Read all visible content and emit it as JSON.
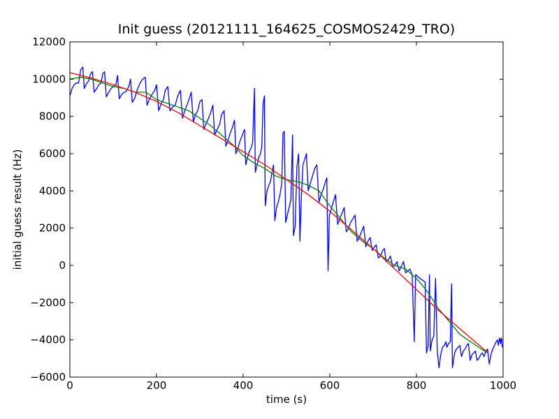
{
  "chart_data": {
    "type": "line",
    "title": "Init guess (20121111_164625_COSMOS2429_TRO)",
    "xlabel": "time (s)",
    "ylabel": "initial guess result (Hz)",
    "xlim": [
      0,
      1000
    ],
    "ylim": [
      -6000,
      12000
    ],
    "xticks": [
      0,
      200,
      400,
      600,
      800,
      1000
    ],
    "yticks": [
      -6000,
      -4000,
      -2000,
      0,
      2000,
      4000,
      6000,
      8000,
      10000,
      12000
    ],
    "x_tick_labels": [
      "0",
      "200",
      "400",
      "600",
      "800",
      "1000"
    ],
    "y_tick_labels": [
      "−6000",
      "−4000",
      "−2000",
      "0",
      "2000",
      "4000",
      "6000",
      "8000",
      "10000",
      "12000"
    ],
    "grid": false,
    "legend": false,
    "series": [
      {
        "color": "#0000ff",
        "points": [
          [
            0,
            9100
          ],
          [
            5,
            9500
          ],
          [
            10,
            9700
          ],
          [
            15,
            9800
          ],
          [
            20,
            9800
          ],
          [
            25,
            10500
          ],
          [
            30,
            10650
          ],
          [
            33,
            9500
          ],
          [
            38,
            9750
          ],
          [
            43,
            9900
          ],
          [
            48,
            10300
          ],
          [
            52,
            10400
          ],
          [
            56,
            9300
          ],
          [
            62,
            9500
          ],
          [
            67,
            9700
          ],
          [
            72,
            9800
          ],
          [
            76,
            10300
          ],
          [
            80,
            10400
          ],
          [
            84,
            9050
          ],
          [
            90,
            9300
          ],
          [
            95,
            9500
          ],
          [
            100,
            9600
          ],
          [
            106,
            9700
          ],
          [
            110,
            10200
          ],
          [
            114,
            8950
          ],
          [
            120,
            9200
          ],
          [
            126,
            9300
          ],
          [
            130,
            9350
          ],
          [
            136,
            9600
          ],
          [
            140,
            10000
          ],
          [
            144,
            8750
          ],
          [
            150,
            9000
          ],
          [
            155,
            9400
          ],
          [
            162,
            9800
          ],
          [
            168,
            10000
          ],
          [
            174,
            10100
          ],
          [
            178,
            8600
          ],
          [
            183,
            8900
          ],
          [
            190,
            9200
          ],
          [
            196,
            9400
          ],
          [
            200,
            9700
          ],
          [
            205,
            8300
          ],
          [
            211,
            8700
          ],
          [
            216,
            8900
          ],
          [
            220,
            9400
          ],
          [
            226,
            9600
          ],
          [
            231,
            8300
          ],
          [
            237,
            8500
          ],
          [
            243,
            8600
          ],
          [
            249,
            9100
          ],
          [
            255,
            9400
          ],
          [
            260,
            7900
          ],
          [
            265,
            8300
          ],
          [
            270,
            8600
          ],
          [
            275,
            8900
          ],
          [
            280,
            9300
          ],
          [
            285,
            7700
          ],
          [
            290,
            8100
          ],
          [
            295,
            8300
          ],
          [
            300,
            8800
          ],
          [
            305,
            8900
          ],
          [
            309,
            7300
          ],
          [
            314,
            7600
          ],
          [
            320,
            7900
          ],
          [
            325,
            8200
          ],
          [
            330,
            8600
          ],
          [
            334,
            7000
          ],
          [
            340,
            7300
          ],
          [
            346,
            7600
          ],
          [
            350,
            8100
          ],
          [
            356,
            8300
          ],
          [
            360,
            6400
          ],
          [
            365,
            6700
          ],
          [
            370,
            7100
          ],
          [
            375,
            7400
          ],
          [
            380,
            7800
          ],
          [
            383,
            6000
          ],
          [
            388,
            6300
          ],
          [
            393,
            6700
          ],
          [
            398,
            7000
          ],
          [
            403,
            7300
          ],
          [
            406,
            5400
          ],
          [
            410,
            5800
          ],
          [
            414,
            6100
          ],
          [
            418,
            6300
          ],
          [
            422,
            6600
          ],
          [
            426,
            9500
          ],
          [
            428,
            5000
          ],
          [
            432,
            5400
          ],
          [
            436,
            5800
          ],
          [
            440,
            6000
          ],
          [
            443,
            6400
          ],
          [
            446,
            8700
          ],
          [
            449,
            9100
          ],
          [
            451,
            3200
          ],
          [
            455,
            4000
          ],
          [
            459,
            4300
          ],
          [
            463,
            4500
          ],
          [
            466,
            4900
          ],
          [
            470,
            5400
          ],
          [
            473,
            2400
          ],
          [
            477,
            3100
          ],
          [
            481,
            3400
          ],
          [
            485,
            3800
          ],
          [
            489,
            4400
          ],
          [
            492,
            7100
          ],
          [
            495,
            7200
          ],
          [
            498,
            2300
          ],
          [
            502,
            2700
          ],
          [
            506,
            3100
          ],
          [
            510,
            3500
          ],
          [
            514,
            7000
          ],
          [
            516,
            1600
          ],
          [
            520,
            2100
          ],
          [
            524,
            5300
          ],
          [
            528,
            6000
          ],
          [
            531,
            1300
          ],
          [
            534,
            3500
          ],
          [
            538,
            5400
          ],
          [
            542,
            5700
          ],
          [
            546,
            6000
          ],
          [
            550,
            4000
          ],
          [
            555,
            4400
          ],
          [
            560,
            4800
          ],
          [
            565,
            5200
          ],
          [
            570,
            5400
          ],
          [
            575,
            3400
          ],
          [
            580,
            3800
          ],
          [
            585,
            4100
          ],
          [
            590,
            4500
          ],
          [
            593,
            4700
          ],
          [
            596,
            -300
          ],
          [
            599,
            2700
          ],
          [
            603,
            3000
          ],
          [
            608,
            3400
          ],
          [
            613,
            3800
          ],
          [
            618,
            2200
          ],
          [
            623,
            2500
          ],
          [
            628,
            2800
          ],
          [
            633,
            3100
          ],
          [
            638,
            1800
          ],
          [
            643,
            2000
          ],
          [
            648,
            2300
          ],
          [
            653,
            2500
          ],
          [
            658,
            2700
          ],
          [
            663,
            1300
          ],
          [
            668,
            1500
          ],
          [
            673,
            1800
          ],
          [
            678,
            2100
          ],
          [
            683,
            1000
          ],
          [
            688,
            1300
          ],
          [
            693,
            1500
          ],
          [
            698,
            800
          ],
          [
            703,
            1000
          ],
          [
            707,
            1100
          ],
          [
            712,
            400
          ],
          [
            717,
            500
          ],
          [
            722,
            800
          ],
          [
            726,
            900
          ],
          [
            730,
            200
          ],
          [
            735,
            300
          ],
          [
            740,
            500
          ],
          [
            745,
            -100
          ],
          [
            750,
            0
          ],
          [
            755,
            200
          ],
          [
            760,
            -300
          ],
          [
            766,
            0
          ],
          [
            770,
            200
          ],
          [
            775,
            -400
          ],
          [
            780,
            -300
          ],
          [
            785,
            -200
          ],
          [
            790,
            -500
          ],
          [
            795,
            -4100
          ],
          [
            798,
            -500
          ],
          [
            803,
            -600
          ],
          [
            808,
            -700
          ],
          [
            814,
            -800
          ],
          [
            820,
            -900
          ],
          [
            823,
            -4700
          ],
          [
            827,
            -4300
          ],
          [
            830,
            -500
          ],
          [
            832,
            -4600
          ],
          [
            836,
            -4000
          ],
          [
            840,
            -3800
          ],
          [
            844,
            -700
          ],
          [
            848,
            -4600
          ],
          [
            852,
            -5500
          ],
          [
            856,
            -4800
          ],
          [
            860,
            -4400
          ],
          [
            864,
            -4300
          ],
          [
            868,
            -4100
          ],
          [
            870,
            -4400
          ],
          [
            874,
            -4200
          ],
          [
            878,
            -4100
          ],
          [
            881,
            -1000
          ],
          [
            883,
            -5500
          ],
          [
            888,
            -4700
          ],
          [
            892,
            -4500
          ],
          [
            896,
            -4400
          ],
          [
            900,
            -4300
          ],
          [
            904,
            -4900
          ],
          [
            908,
            -4600
          ],
          [
            912,
            -4500
          ],
          [
            916,
            -4300
          ],
          [
            920,
            -4200
          ],
          [
            924,
            -5100
          ],
          [
            928,
            -4800
          ],
          [
            932,
            -4700
          ],
          [
            936,
            -4600
          ],
          [
            940,
            -5100
          ],
          [
            944,
            -5000
          ],
          [
            948,
            -4800
          ],
          [
            952,
            -4700
          ],
          [
            956,
            -4900
          ],
          [
            960,
            -4600
          ],
          [
            964,
            -4500
          ],
          [
            968,
            -5300
          ],
          [
            972,
            -4800
          ],
          [
            976,
            -4500
          ],
          [
            980,
            -4300
          ],
          [
            984,
            -4100
          ],
          [
            987,
            -4000
          ],
          [
            989,
            -4300
          ],
          [
            992,
            -3900
          ],
          [
            994,
            -4200
          ],
          [
            996,
            -3900
          ],
          [
            998,
            -4400
          ]
        ]
      },
      {
        "color": "#008000",
        "points": [
          [
            0,
            10000
          ],
          [
            25,
            10100
          ],
          [
            50,
            10000
          ],
          [
            75,
            9800
          ],
          [
            100,
            9600
          ],
          [
            125,
            9500
          ],
          [
            150,
            9300
          ],
          [
            175,
            9300
          ],
          [
            200,
            8900
          ],
          [
            225,
            8700
          ],
          [
            250,
            8500
          ],
          [
            275,
            8300
          ],
          [
            300,
            7900
          ],
          [
            325,
            7500
          ],
          [
            350,
            7000
          ],
          [
            375,
            6500
          ],
          [
            400,
            5900
          ],
          [
            425,
            5500
          ],
          [
            450,
            5200
          ],
          [
            475,
            4800
          ],
          [
            500,
            4600
          ],
          [
            525,
            4500
          ],
          [
            550,
            4300
          ],
          [
            575,
            4000
          ],
          [
            600,
            3200
          ],
          [
            625,
            2500
          ],
          [
            650,
            1800
          ],
          [
            675,
            1300
          ],
          [
            700,
            900
          ],
          [
            725,
            400
          ],
          [
            750,
            0
          ],
          [
            775,
            -200
          ],
          [
            800,
            -700
          ],
          [
            825,
            -1400
          ],
          [
            850,
            -2300
          ],
          [
            875,
            -3000
          ],
          [
            900,
            -3700
          ],
          [
            925,
            -4100
          ],
          [
            950,
            -4500
          ],
          [
            965,
            -4700
          ]
        ]
      },
      {
        "color": "#ff0000",
        "points": [
          [
            0,
            10350
          ],
          [
            50,
            10050
          ],
          [
            100,
            9700
          ],
          [
            150,
            9300
          ],
          [
            200,
            8800
          ],
          [
            250,
            8200
          ],
          [
            300,
            7500
          ],
          [
            350,
            6800
          ],
          [
            400,
            6100
          ],
          [
            450,
            5400
          ],
          [
            500,
            4600
          ],
          [
            550,
            3800
          ],
          [
            600,
            2900
          ],
          [
            650,
            1900
          ],
          [
            700,
            900
          ],
          [
            750,
            -200
          ],
          [
            800,
            -1300
          ],
          [
            850,
            -2400
          ],
          [
            900,
            -3400
          ],
          [
            950,
            -4400
          ],
          [
            965,
            -4700
          ]
        ]
      }
    ]
  }
}
